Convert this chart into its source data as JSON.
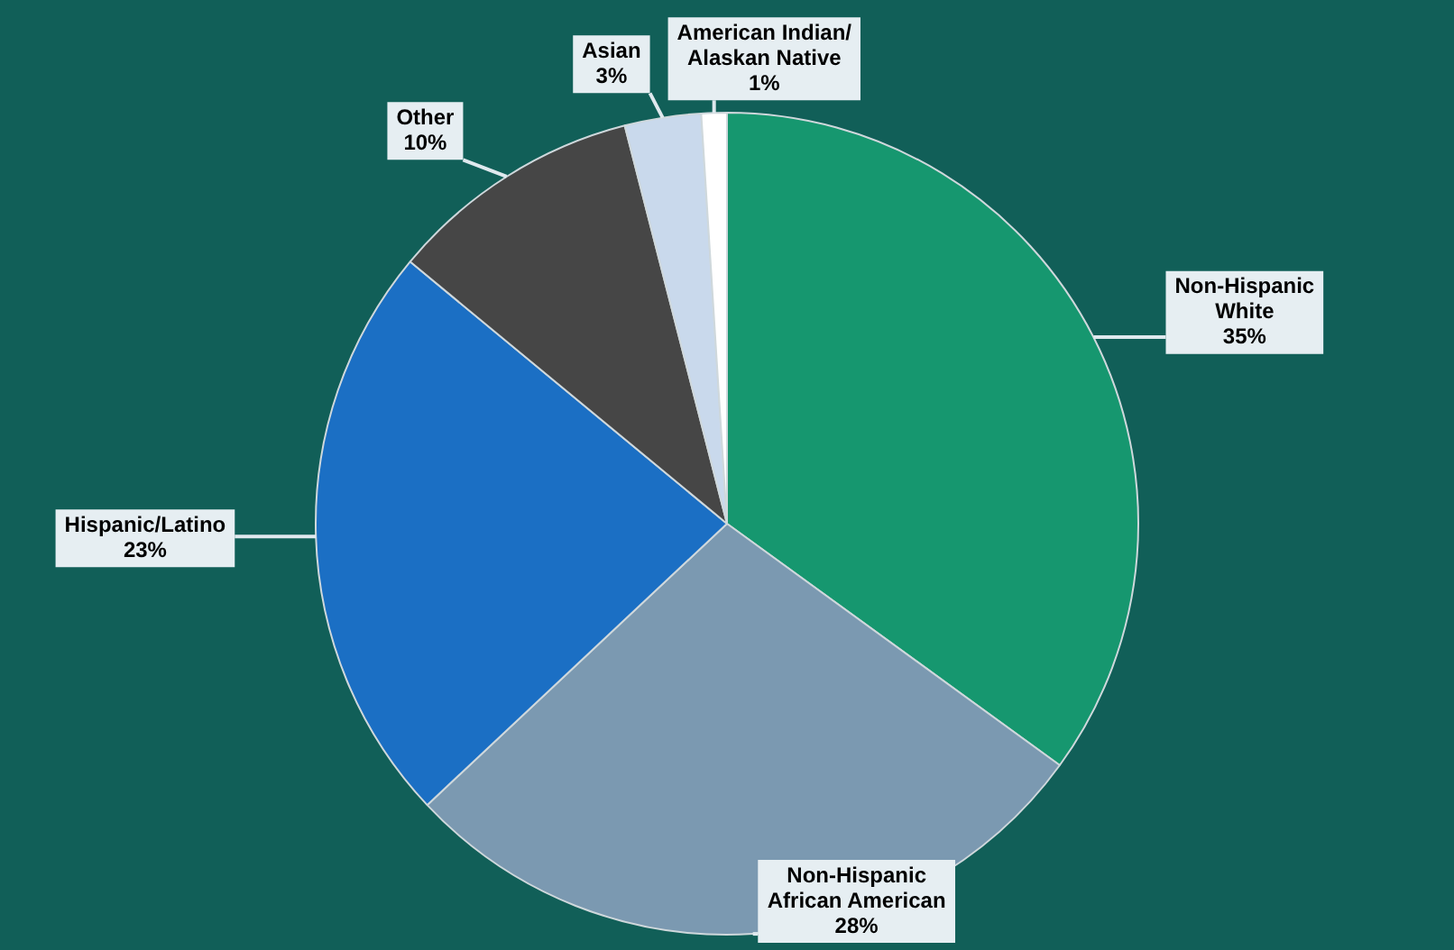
{
  "chart_data": {
    "type": "pie",
    "categories": [
      "Non-Hispanic White",
      "Non-Hispanic African American",
      "Hispanic/Latino",
      "Other",
      "Asian",
      "American Indian/ Alaskan Native"
    ],
    "values": [
      35,
      28,
      23,
      10,
      3,
      1
    ],
    "value_labels": [
      "35%",
      "28%",
      "23%",
      "10%",
      "3%",
      "1%"
    ],
    "colors": [
      "#16976f",
      "#7b99b1",
      "#1b6fc4",
      "#464646",
      "#c9d9ec",
      "#ffffff"
    ],
    "legend": false
  }
}
